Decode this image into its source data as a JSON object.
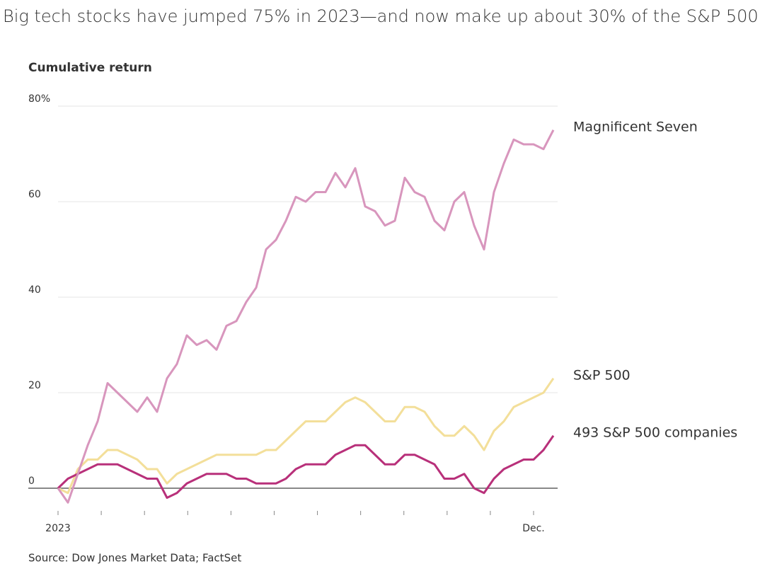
{
  "chart_data": {
    "type": "line",
    "title": "Big tech stocks have jumped 75% in 2023—and now make up about 30% of the S&P 500",
    "y_label": "Cumulative return",
    "source": "Source: Dow Jones Market Data; FactSet",
    "categories": [
      "2023",
      null,
      null,
      null,
      null,
      null,
      null,
      null,
      null,
      null,
      null,
      null,
      null,
      null,
      null,
      null,
      null,
      null,
      null,
      null,
      null,
      null,
      null,
      null,
      null,
      null,
      null,
      null,
      null,
      null,
      null,
      null,
      null,
      null,
      null,
      null,
      null,
      null,
      null,
      null,
      null,
      null,
      null,
      null,
      null,
      null,
      null,
      null,
      "Dec.",
      null,
      null
    ],
    "series": [
      {
        "name": "Magnificent Seven",
        "color": "#d896bd",
        "values": [
          0,
          -3,
          3,
          9,
          14,
          22,
          20,
          18,
          16,
          19,
          16,
          23,
          26,
          32,
          30,
          31,
          29,
          34,
          35,
          39,
          42,
          50,
          52,
          56,
          61,
          60,
          62,
          62,
          66,
          63,
          67,
          59,
          58,
          55,
          56,
          65,
          62,
          61,
          56,
          54,
          60,
          62,
          55,
          50,
          62,
          68,
          73,
          72,
          72,
          71,
          75
        ]
      },
      {
        "name": "S&P 500",
        "color": "#f3df9a",
        "values": [
          0,
          -1,
          4,
          6,
          6,
          8,
          8,
          7,
          6,
          4,
          4,
          1,
          3,
          4,
          5,
          6,
          7,
          7,
          7,
          7,
          7,
          8,
          8,
          10,
          12,
          14,
          14,
          14,
          16,
          18,
          19,
          18,
          16,
          14,
          14,
          17,
          17,
          16,
          13,
          11,
          11,
          13,
          11,
          8,
          12,
          14,
          17,
          18,
          19,
          20,
          23
        ]
      },
      {
        "name": "493 S&P 500 companies",
        "color": "#b8307a",
        "values": [
          0,
          2,
          3,
          4,
          5,
          5,
          5,
          4,
          3,
          2,
          2,
          -2,
          -1,
          1,
          2,
          3,
          3,
          3,
          2,
          2,
          1,
          1,
          1,
          2,
          4,
          5,
          5,
          5,
          7,
          8,
          9,
          9,
          7,
          5,
          5,
          7,
          7,
          6,
          5,
          2,
          2,
          3,
          0,
          -1,
          2,
          4,
          5,
          6,
          6,
          8,
          11
        ]
      }
    ],
    "ylim": [
      -6,
      80
    ],
    "yticks": [
      0,
      20,
      40,
      60,
      {
        "value": 80,
        "label": "80%"
      }
    ],
    "grid": true
  }
}
